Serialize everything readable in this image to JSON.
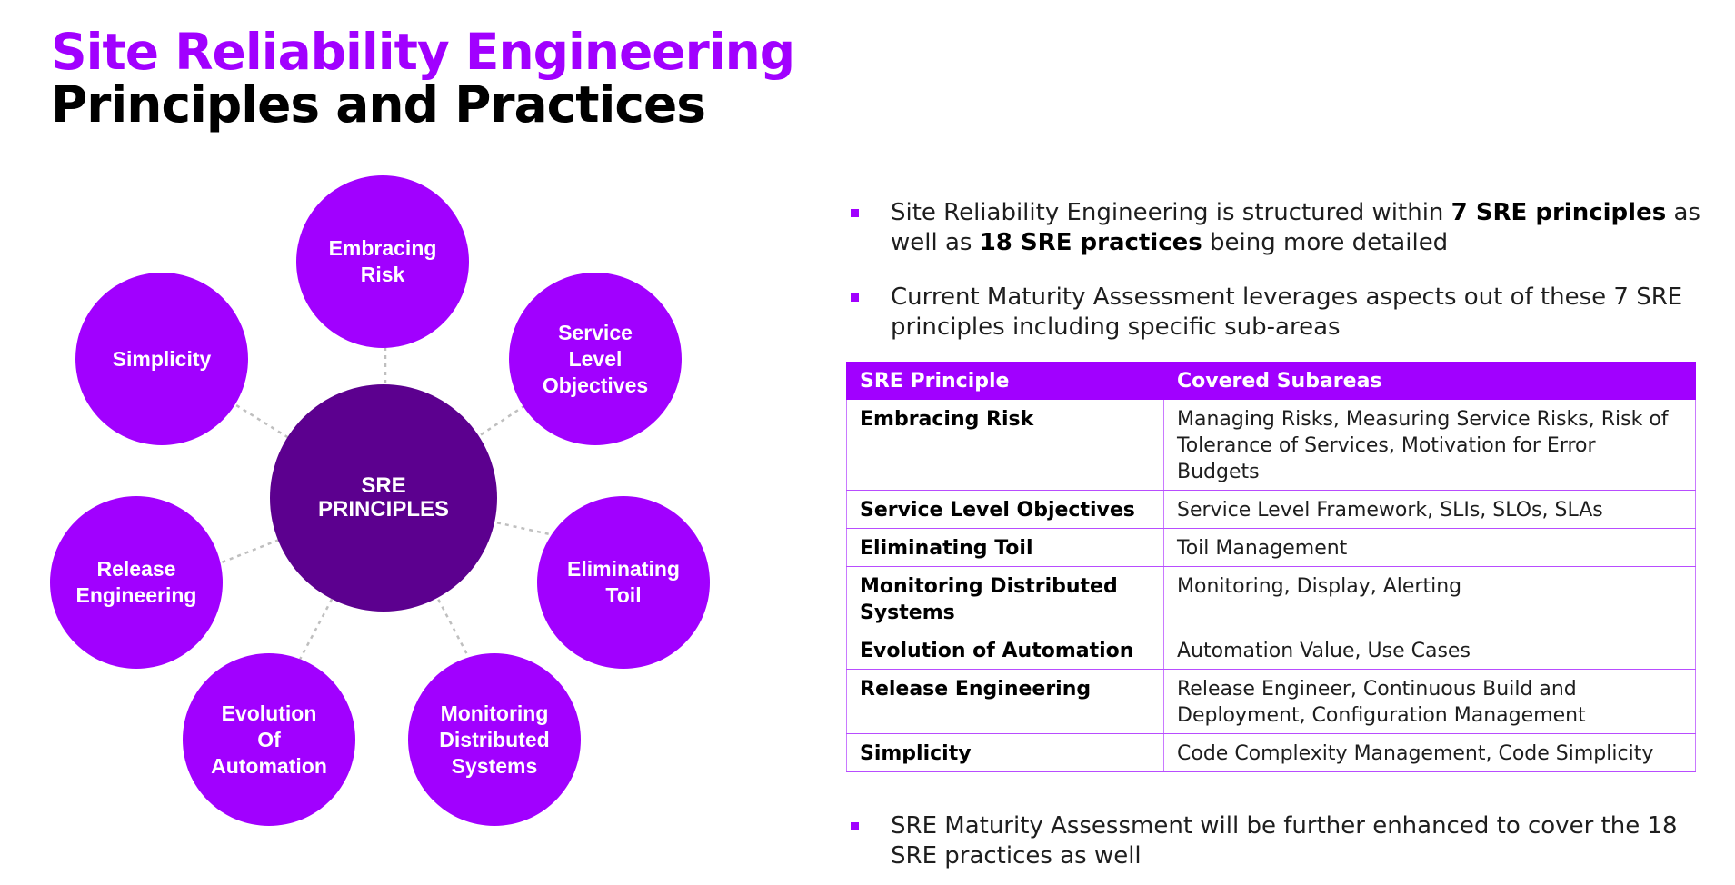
{
  "header": {
    "title_line1": "Site Reliability Engineering",
    "title_line2": "Principles and Practices"
  },
  "diagram": {
    "center": "SRE\nPRINCIPLES",
    "nodes": [
      "Embracing\nRisk",
      "Service\nLevel\nObjectives",
      "Eliminating\nToil",
      "Monitoring\nDistributed\nSystems",
      "Evolution\nOf\nAutomation",
      "Release\nEngineering",
      "Simplicity"
    ],
    "colors": {
      "node": "#a100ff",
      "center": "#5c008f",
      "connector": "#bfbfbf"
    }
  },
  "bullets": {
    "b1": {
      "part1": "Site Reliability Engineering is structured within ",
      "bold1": "7 SRE principles",
      "part2": " as well as ",
      "bold2": "18 SRE practices",
      "part3": " being more detailed"
    },
    "b2": {
      "text": "Current Maturity Assessment leverages aspects out of these 7 SRE principles including specific sub-areas"
    },
    "b3": {
      "text": "SRE Maturity Assessment will be further enhanced to cover the 18 SRE practices as well"
    }
  },
  "table": {
    "headers": [
      "SRE Principle",
      "Covered Subareas"
    ],
    "rows": [
      [
        "Embracing Risk",
        "Managing Risks, Measuring Service Risks, Risk of Tolerance of Services, Motivation for Error Budgets"
      ],
      [
        "Service Level Objectives",
        "Service Level Framework, SLIs, SLOs, SLAs"
      ],
      [
        "Eliminating Toil",
        "Toil Management"
      ],
      [
        "Monitoring Distributed Systems",
        "Monitoring, Display, Alerting"
      ],
      [
        "Evolution of Automation",
        "Automation Value, Use Cases"
      ],
      [
        "Release Engineering",
        "Release Engineer, Continuous Build and Deployment, Configuration Management"
      ],
      [
        "Simplicity",
        "Code Complexity Management, Code Simplicity"
      ]
    ]
  },
  "accent_color": "#a100ff"
}
